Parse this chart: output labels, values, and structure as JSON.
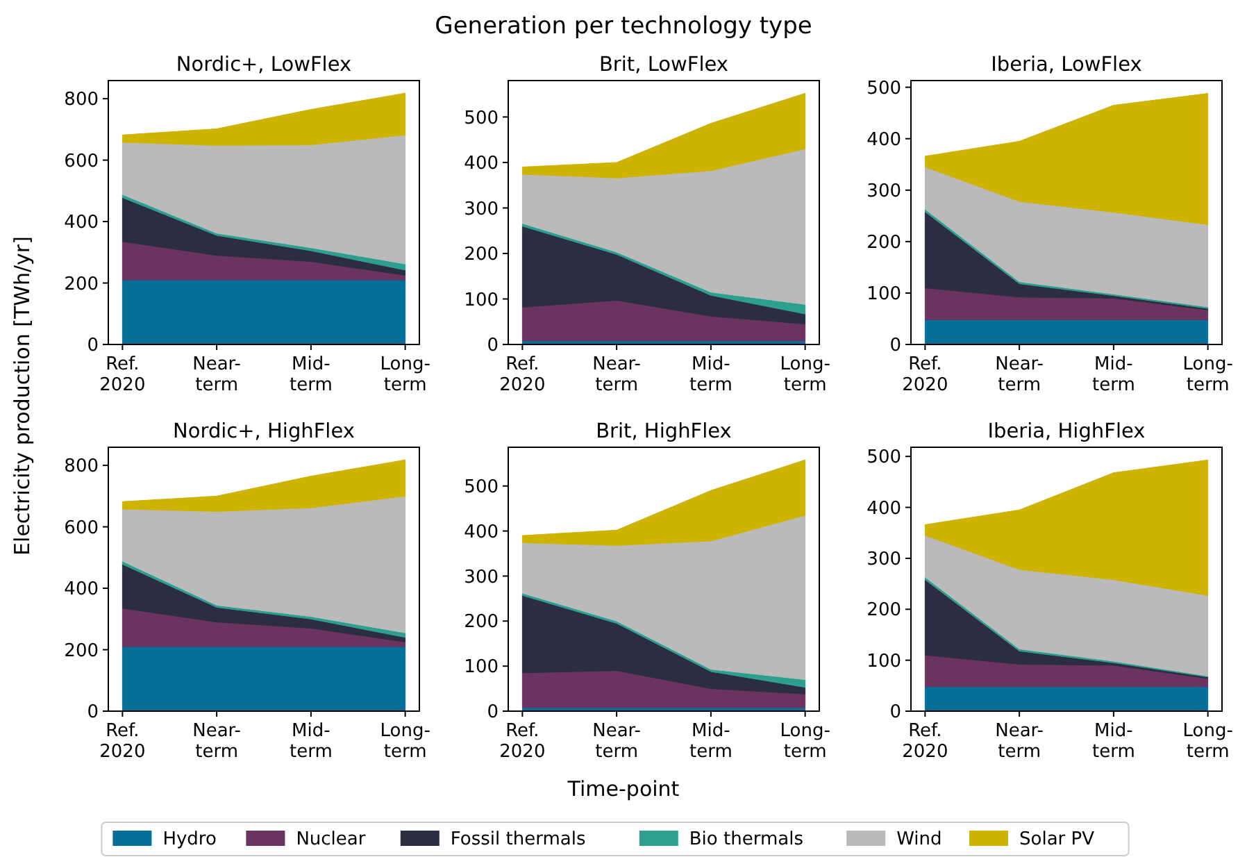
{
  "chart_data": [
    {
      "type": "area",
      "stacked": true,
      "title": "Nordic+, LowFlex",
      "annotations": [
        "Generation per technology type"
      ],
      "ylabel": "Electricity production [TWh/yr]",
      "legend": "bottom",
      "categories": [
        "Ref.\n2020",
        "Near-\nterm",
        "Mid-\nterm",
        "Long-\nterm"
      ],
      "ylim": [
        0,
        859
      ],
      "yticks": [
        0,
        200,
        400,
        600,
        800
      ],
      "series": [
        {
          "name": "Hydro",
          "color": "#056f9a",
          "values": [
            210,
            210,
            210,
            210
          ]
        },
        {
          "name": "Nuclear",
          "color": "#6a3360",
          "values": [
            125,
            80,
            60,
            15
          ]
        },
        {
          "name": "Fossil thermals",
          "color": "#2b2e42",
          "values": [
            143,
            65,
            35,
            17
          ]
        },
        {
          "name": "Bio thermals",
          "color": "#2c9f8e",
          "values": [
            10,
            7,
            10,
            20
          ]
        },
        {
          "name": "Wind",
          "color": "#bababa",
          "values": [
            170,
            286,
            335,
            420
          ]
        },
        {
          "name": "Solar PV",
          "color": "#ceb400",
          "values": [
            24,
            54,
            115,
            136
          ]
        }
      ]
    },
    {
      "type": "area",
      "stacked": true,
      "title": "Brit, LowFlex",
      "categories": [
        "Ref.\n2020",
        "Near-\nterm",
        "Mid-\nterm",
        "Long-\nterm"
      ],
      "ylim": [
        0,
        580
      ],
      "yticks": [
        0,
        100,
        200,
        300,
        400,
        500
      ],
      "series": [
        {
          "color": "#056f9a",
          "values": [
            8,
            8,
            8,
            8
          ]
        },
        {
          "color": "#6a3360",
          "values": [
            74,
            89,
            54,
            37
          ]
        },
        {
          "color": "#2b2e42",
          "values": [
            178,
            101,
            46,
            22
          ]
        },
        {
          "color": "#2c9f8e",
          "values": [
            6,
            5,
            7,
            21
          ]
        },
        {
          "color": "#bababa",
          "values": [
            108,
            163,
            267,
            342
          ]
        },
        {
          "color": "#ceb400",
          "values": [
            16,
            34,
            104,
            122
          ]
        }
      ]
    },
    {
      "type": "area",
      "stacked": true,
      "title": "Iberia, LowFlex",
      "categories": [
        "Ref.\n2020",
        "Near-\nterm",
        "Mid-\nterm",
        "Long-\nterm"
      ],
      "ylim": [
        0,
        513
      ],
      "yticks": [
        0,
        100,
        200,
        300,
        400,
        500
      ],
      "series": [
        {
          "color": "#056f9a",
          "values": [
            48,
            48,
            48,
            48
          ]
        },
        {
          "color": "#6a3360",
          "values": [
            62,
            44,
            42,
            19
          ]
        },
        {
          "color": "#2b2e42",
          "values": [
            148,
            26,
            5,
            3
          ]
        },
        {
          "color": "#2c9f8e",
          "values": [
            5,
            4,
            3,
            3
          ]
        },
        {
          "color": "#bababa",
          "values": [
            82,
            156,
            159,
            160
          ]
        },
        {
          "color": "#ceb400",
          "values": [
            21,
            117,
            208,
            255
          ]
        }
      ]
    },
    {
      "type": "area",
      "stacked": true,
      "title": "Nordic+, HighFlex",
      "categories": [
        "Ref.\n2020",
        "Near-\nterm",
        "Mid-\nterm",
        "Long-\nterm"
      ],
      "ylim": [
        0,
        859
      ],
      "yticks": [
        0,
        200,
        400,
        600,
        800
      ],
      "series": [
        {
          "color": "#056f9a",
          "values": [
            210,
            210,
            210,
            210
          ]
        },
        {
          "color": "#6a3360",
          "values": [
            125,
            80,
            60,
            15
          ]
        },
        {
          "color": "#2b2e42",
          "values": [
            143,
            48,
            30,
            15
          ]
        },
        {
          "color": "#2c9f8e",
          "values": [
            10,
            7,
            8,
            15
          ]
        },
        {
          "color": "#bababa",
          "values": [
            170,
            305,
            354,
            445
          ]
        },
        {
          "color": "#ceb400",
          "values": [
            24,
            50,
            103,
            118
          ]
        }
      ]
    },
    {
      "type": "area",
      "stacked": true,
      "title": "Brit, HighFlex",
      "xlabel": "Time-point",
      "categories": [
        "Ref.\n2020",
        "Near-\nterm",
        "Mid-\nterm",
        "Long-\nterm"
      ],
      "ylim": [
        0,
        586
      ],
      "yticks": [
        0,
        100,
        200,
        300,
        400,
        500
      ],
      "series": [
        {
          "color": "#056f9a",
          "values": [
            8,
            8,
            8,
            8
          ]
        },
        {
          "color": "#6a3360",
          "values": [
            77,
            82,
            42,
            30
          ]
        },
        {
          "color": "#2b2e42",
          "values": [
            172,
            105,
            38,
            15
          ]
        },
        {
          "color": "#2c9f8e",
          "values": [
            5,
            5,
            5,
            17
          ]
        },
        {
          "color": "#bababa",
          "values": [
            112,
            168,
            285,
            365
          ]
        },
        {
          "color": "#ceb400",
          "values": [
            16,
            34,
            112,
            123
          ]
        }
      ]
    },
    {
      "type": "area",
      "stacked": true,
      "title": "Iberia, HighFlex",
      "categories": [
        "Ref.\n2020",
        "Near-\nterm",
        "Mid-\nterm",
        "Long-\nterm"
      ],
      "ylim": [
        0,
        518
      ],
      "yticks": [
        0,
        100,
        200,
        300,
        400,
        500
      ],
      "series": [
        {
          "color": "#056f9a",
          "values": [
            48,
            48,
            48,
            48
          ]
        },
        {
          "color": "#6a3360",
          "values": [
            62,
            44,
            42,
            16
          ]
        },
        {
          "color": "#2b2e42",
          "values": [
            148,
            26,
            5,
            3
          ]
        },
        {
          "color": "#2c9f8e",
          "values": [
            5,
            4,
            3,
            2
          ]
        },
        {
          "color": "#bababa",
          "values": [
            82,
            156,
            160,
            158
          ]
        },
        {
          "color": "#ceb400",
          "values": [
            21,
            117,
            210,
            266
          ]
        }
      ]
    }
  ]
}
